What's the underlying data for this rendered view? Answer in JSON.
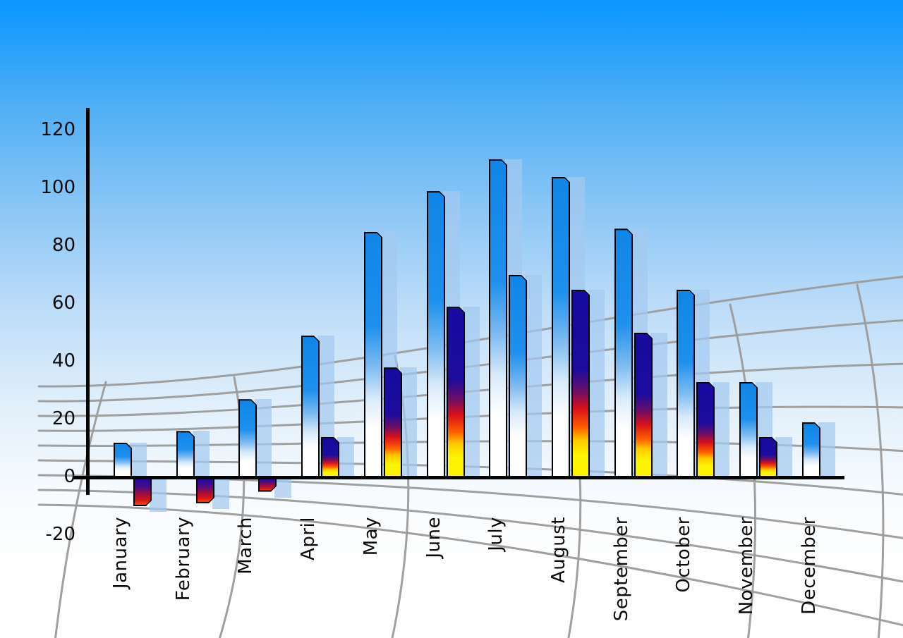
{
  "chart_data": {
    "type": "bar",
    "title": "",
    "xlabel": "",
    "ylabel": "",
    "categories": [
      "January",
      "February",
      "March",
      "April",
      "May",
      "June",
      "July",
      "August",
      "September",
      "October",
      "November",
      "December"
    ],
    "series": [
      {
        "name": "primary-blue-series",
        "style": "blue-gradient",
        "values": [
          12,
          16,
          27,
          49,
          85,
          99,
          110,
          104,
          86,
          65,
          33,
          19
        ]
      },
      {
        "name": "secondary-rainbow-series",
        "style": "rainbow-gradient",
        "values": [
          -10,
          -9,
          -5,
          14,
          38,
          59,
          70,
          65,
          50,
          33,
          14,
          null
        ],
        "bar_styles": [
          "rainbow",
          "rainbow",
          "rainbow",
          "rainbow",
          "rainbow",
          "rainbow",
          "blue",
          "rainbow",
          "rainbow",
          "rainbow",
          "rainbow",
          null
        ]
      }
    ],
    "yticks": [
      120,
      100,
      80,
      60,
      40,
      20,
      0,
      -20
    ],
    "ylim": [
      -20,
      120
    ],
    "legend_position": "none",
    "grid": "decorative gray perspective mesh behind bars",
    "x_tick_rotation": "90deg, reading bottom-to-top, top-aligned under axis",
    "shadow_bars": "each bar has a translucent light-blue duplicate offset to the right",
    "colors": {
      "sky_top": "#0a96fe",
      "sky_bottom": "#ffffff",
      "bar_blue_top": "#0f86e8",
      "bar_navy": "#150b9d",
      "bar_red": "#d8101c",
      "bar_yellow": "#fcf402",
      "echo_bar": "rgba(164,201,240,0.72)",
      "axis": "#040404",
      "mesh_line": "#9b9b9b",
      "label_text": "#0a0a0a"
    }
  }
}
